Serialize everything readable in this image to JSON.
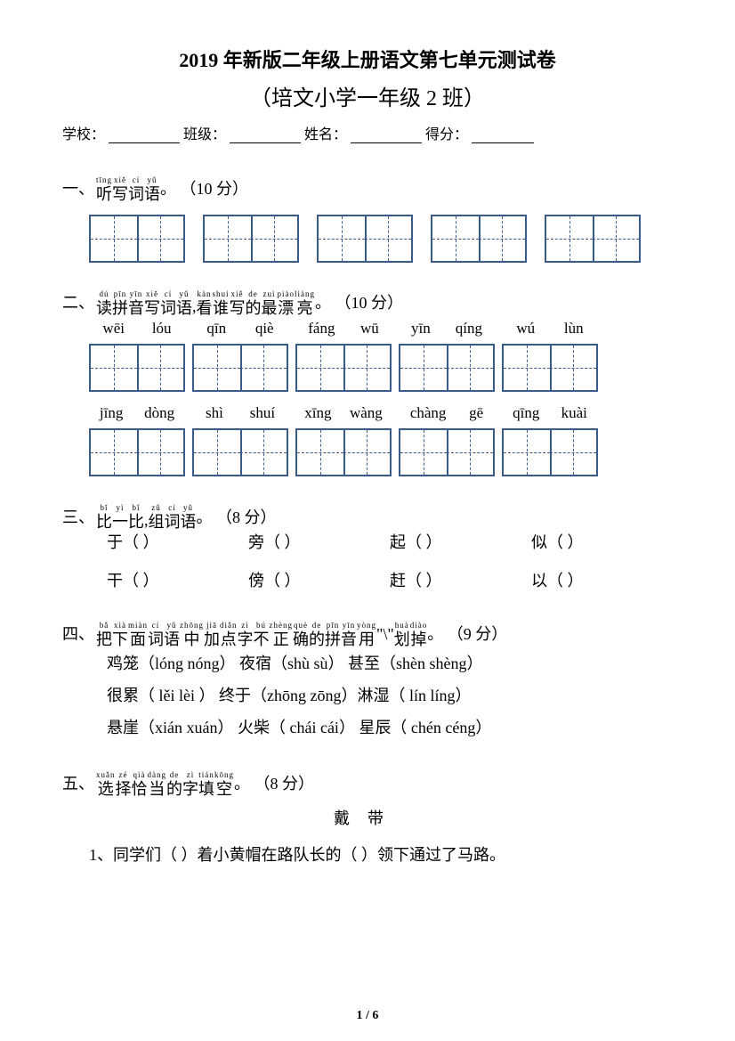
{
  "title_main": "2019 年新版二年级上册语文第七单元测试卷",
  "title_sub": "（培文小学一年级 2 班）",
  "info": {
    "school": "学校：",
    "class": "班级：",
    "name": "姓名：",
    "score": "得分："
  },
  "s1": {
    "num": "一、",
    "ruby": [
      {
        "p": "tīng",
        "c": "听"
      },
      {
        "p": "xiě",
        "c": "写"
      },
      {
        "p": "cí",
        "c": "词"
      },
      {
        "p": "yǔ",
        "c": "语"
      }
    ],
    "tail": "。 （10 分）"
  },
  "s2": {
    "num": "二、",
    "ruby": [
      {
        "p": "dú",
        "c": "读"
      },
      {
        "p": "pīn",
        "c": "拼"
      },
      {
        "p": "yīn",
        "c": "音"
      },
      {
        "p": "xiě",
        "c": "写"
      },
      {
        "p": "cí",
        "c": "词"
      },
      {
        "p": "yǔ",
        "c": "语"
      },
      {
        "p": "",
        "c": ","
      },
      {
        "p": "kàn",
        "c": "看"
      },
      {
        "p": "shuí",
        "c": "谁"
      },
      {
        "p": "xiě",
        "c": "写"
      },
      {
        "p": "de",
        "c": "的"
      },
      {
        "p": "zuì",
        "c": "最"
      },
      {
        "p": "piào",
        "c": "漂"
      },
      {
        "p": "liàng",
        "c": "亮"
      }
    ],
    "tail": "。 （10 分）",
    "pinyin_row1": [
      [
        "wēi",
        "lóu"
      ],
      [
        "qīn",
        "qiè"
      ],
      [
        "fáng",
        "wū"
      ],
      [
        "yīn",
        "qíng"
      ],
      [
        "wú",
        "lùn"
      ]
    ],
    "pinyin_row2": [
      [
        "jīng",
        "dòng"
      ],
      [
        "shì",
        "shuí"
      ],
      [
        "xīng",
        "wàng"
      ],
      [
        "chàng",
        "gē"
      ],
      [
        "qīng",
        "kuài"
      ]
    ]
  },
  "s3": {
    "num": "三、",
    "ruby": [
      {
        "p": "bǐ",
        "c": "比"
      },
      {
        "p": "yì",
        "c": "一"
      },
      {
        "p": "bǐ",
        "c": "比"
      },
      {
        "p": "",
        "c": ","
      },
      {
        "p": "zǔ",
        "c": "组"
      },
      {
        "p": "cí",
        "c": "词"
      },
      {
        "p": "yǔ",
        "c": "语"
      }
    ],
    "tail": "。 （8 分）",
    "row1": [
      "于（        ）",
      "旁（        ）",
      "起（        ）",
      "似（        ）"
    ],
    "row2": [
      "干（        ）",
      "傍（        ）",
      "赶（        ）",
      "以（        ）"
    ]
  },
  "s4": {
    "num": "四、",
    "ruby": [
      {
        "p": "bǎ",
        "c": "把"
      },
      {
        "p": "xià",
        "c": "下"
      },
      {
        "p": "miàn",
        "c": "面"
      },
      {
        "p": "cí",
        "c": "词"
      },
      {
        "p": "yǔ",
        "c": "语"
      },
      {
        "p": "zhōng",
        "c": "中"
      },
      {
        "p": "jiā",
        "c": "加"
      },
      {
        "p": "diǎn",
        "c": "点"
      },
      {
        "p": "zì",
        "c": "字"
      },
      {
        "p": "bú",
        "c": "不"
      },
      {
        "p": "zhèng",
        "c": "正"
      },
      {
        "p": "què",
        "c": "确"
      },
      {
        "p": "de",
        "c": "的"
      },
      {
        "p": "pīn",
        "c": "拼"
      },
      {
        "p": "yīn",
        "c": "音"
      },
      {
        "p": "yòng",
        "c": "用"
      }
    ],
    "mid": " \"\\\" ",
    "ruby2": [
      {
        "p": "huà",
        "c": "划"
      },
      {
        "p": "diào",
        "c": "掉"
      }
    ],
    "tail": "。 （9 分）",
    "lines": [
      "鸡笼（lóng   nóng）  夜宿（shù   sù）   甚至（shèn   shèng）",
      "很累（ lěi    lèi ）  终于（zhōng   zōng）淋湿（ lín    líng）",
      "悬崖（xián  xuán）  火柴（ chái    cái）  星辰（ chén   céng）"
    ]
  },
  "s5": {
    "num": "五、",
    "ruby": [
      {
        "p": "xuǎn",
        "c": "选"
      },
      {
        "p": "zé",
        "c": "择"
      },
      {
        "p": "qià",
        "c": "恰"
      },
      {
        "p": "dàng",
        "c": "当"
      },
      {
        "p": "de",
        "c": "的"
      },
      {
        "p": "zì",
        "c": "字"
      },
      {
        "p": "tián",
        "c": "填"
      },
      {
        "p": "kōng",
        "c": "空"
      }
    ],
    "tail": "。 （8 分）",
    "choices": "戴带",
    "line1": "1、同学们（     ）着小黄帽在路队长的（     ）领下通过了马路。"
  },
  "page": "1 / 6"
}
